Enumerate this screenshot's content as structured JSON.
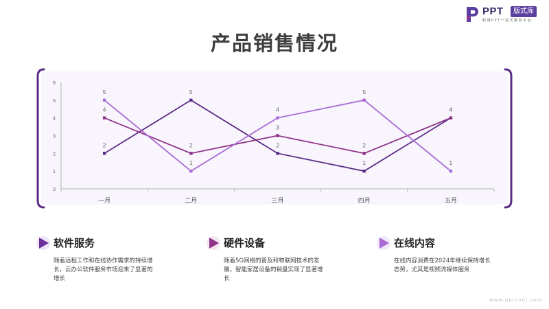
{
  "logo": {
    "ppt": "PPT",
    "badge": "版式库",
    "tagline": "职场PPT一站式服务平台"
  },
  "page_title": "产品销售情况",
  "colors": {
    "frame": "#5b2b86",
    "panel_bg": "#f8f5fc",
    "series_a": "#5b2b86",
    "series_b": "#8e3388",
    "series_c": "#a86ad4",
    "text": "#333333"
  },
  "chart_data": {
    "type": "line",
    "categories": [
      "一月",
      "二月",
      "三月",
      "四月",
      "五月"
    ],
    "series": [
      {
        "values": [
          2,
          5,
          2,
          1,
          4
        ],
        "color": "#5b2b86"
      },
      {
        "values": [
          4,
          2,
          3,
          2,
          4
        ],
        "color": "#8e3388"
      },
      {
        "values": [
          5,
          1,
          4,
          5,
          1
        ],
        "color": "#a86ad4"
      }
    ],
    "yticks": [
      "0",
      "1",
      "2",
      "3",
      "4",
      "5",
      "6"
    ],
    "ylim": [
      0,
      6
    ],
    "grid": false,
    "legend": "none",
    "data_labels": true
  },
  "features": [
    {
      "title": "软件服务",
      "desc": "随着远程工作和在线协作需求的持续增长，云办公软件服务市场迎来了显著的增长",
      "icon": "play-triangle-icon",
      "color": "#6a2f98"
    },
    {
      "title": "硬件设备",
      "desc": "随着5G网络的普及和物联网技术的发展，智能家居设备的销量实现了显著增长",
      "icon": "play-triangle-icon",
      "color": "#8e3388"
    },
    {
      "title": "在线内容",
      "desc": "在线内容消费在2024年继续保持增长态势，尤其是视频流媒体服务",
      "icon": "play-triangle-icon",
      "color": "#a86ad4"
    }
  ],
  "footer": {
    "url": "www.pptcool.com"
  }
}
